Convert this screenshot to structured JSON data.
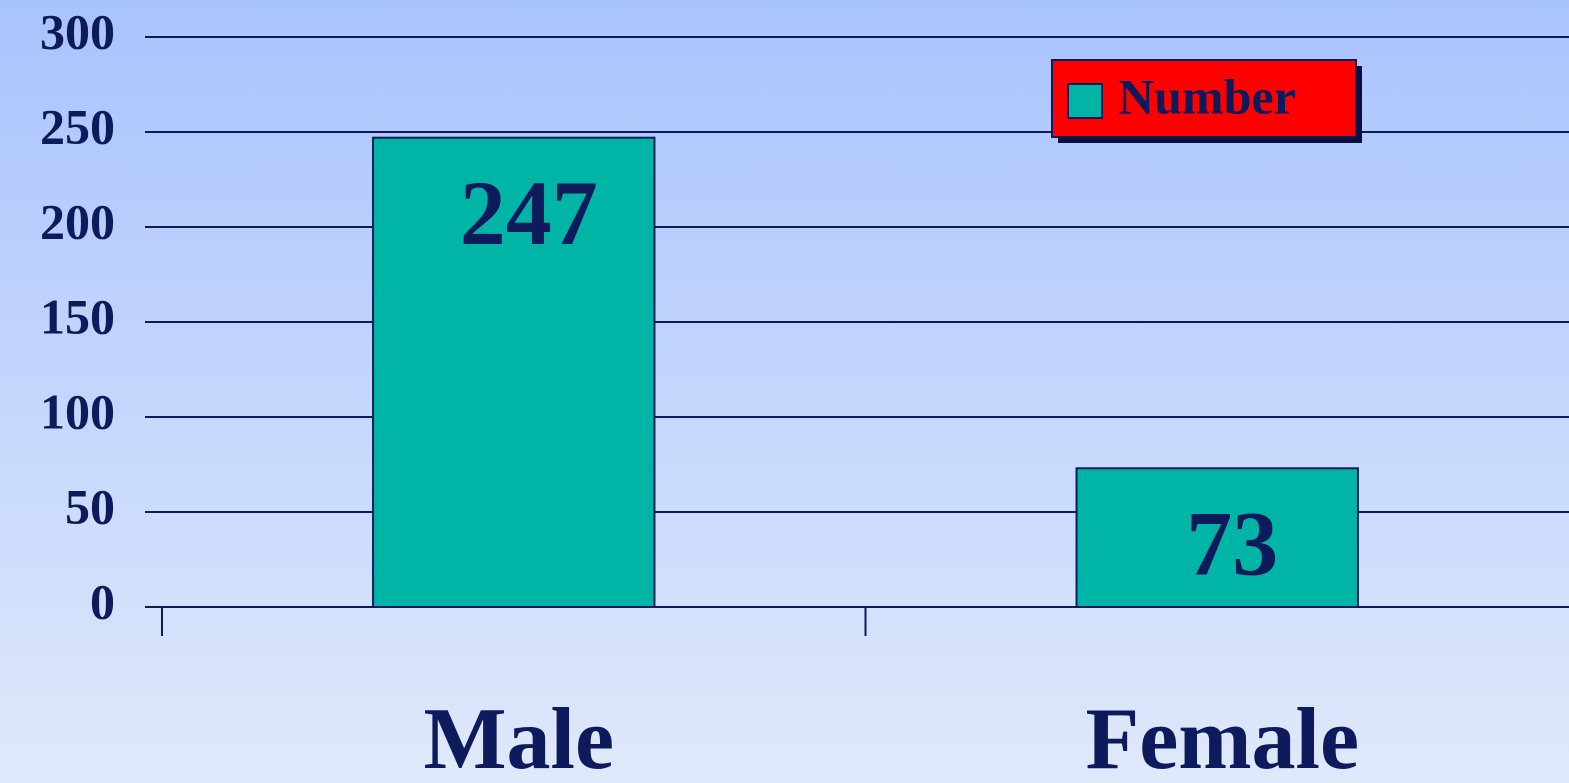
{
  "chart_data": {
    "type": "bar",
    "categories": [
      "Male",
      "Female"
    ],
    "series": [
      {
        "name": "Number",
        "color": "#00b5a5",
        "values": [
          247,
          73
        ]
      }
    ],
    "ylim": [
      0,
      300
    ],
    "yticks": [
      0,
      50,
      100,
      150,
      200,
      250,
      300
    ],
    "grid": true,
    "legend": "top-right",
    "legend_color": "#ff0000"
  }
}
